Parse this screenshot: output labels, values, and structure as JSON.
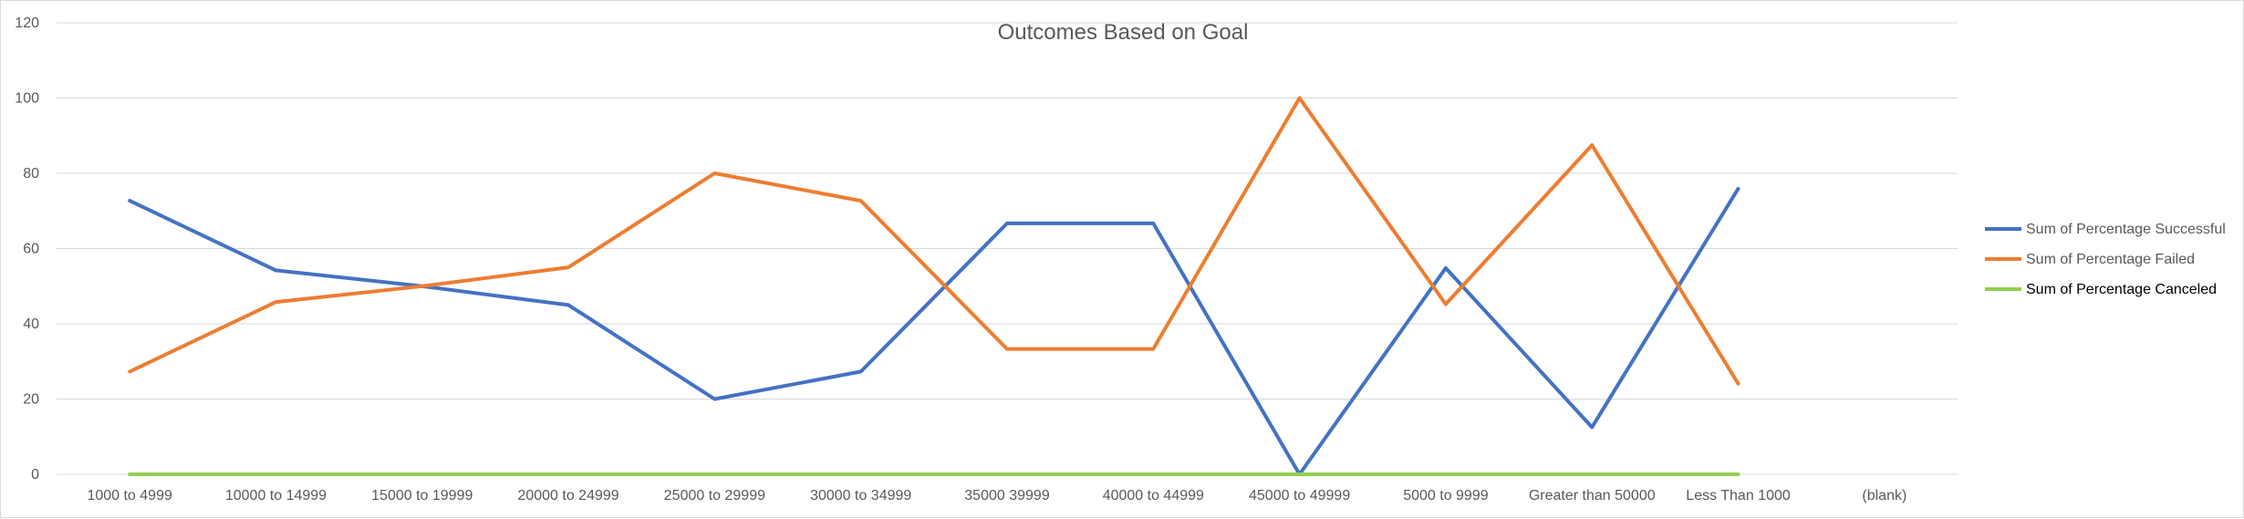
{
  "chart_data": {
    "type": "line",
    "title": "Outcomes Based on Goal",
    "categories": [
      "1000 to 4999",
      "10000 to 14999",
      "15000 to 19999",
      "20000 to 24999",
      "25000 to 29999",
      "30000 to 34999",
      "35000 39999",
      "40000 to 44999",
      "45000 to 49999",
      "5000 to 9999",
      "Greater than 50000",
      "Less Than 1000",
      "(blank)"
    ],
    "ylim": [
      0,
      120
    ],
    "yticks": [
      0,
      20,
      40,
      60,
      80,
      100,
      120
    ],
    "grid": true,
    "legend_position": "right",
    "series": [
      {
        "name": "Sum of Percentage Successful",
        "color": "#4472C4",
        "values": [
          72.7,
          54.2,
          50,
          45,
          20,
          27.3,
          66.7,
          66.7,
          0,
          54.8,
          12.5,
          75.9,
          null
        ]
      },
      {
        "name": "Sum of Percentage Failed",
        "color": "#ED7D31",
        "values": [
          27.3,
          45.8,
          50,
          55,
          80,
          72.7,
          33.3,
          33.3,
          100,
          45.2,
          87.5,
          24.1,
          null
        ]
      },
      {
        "name": "Sum of Percentage Canceled",
        "color": "#92D050",
        "values": [
          0,
          0,
          0,
          0,
          0,
          0,
          0,
          0,
          0,
          0,
          0,
          0,
          null
        ]
      }
    ]
  }
}
